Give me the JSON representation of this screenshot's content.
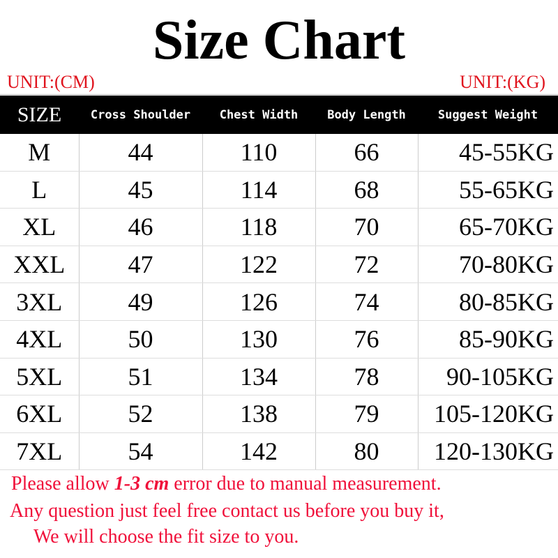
{
  "title": "Size Chart",
  "unit_left": "UNIT:(CM)",
  "unit_right": "UNIT:(KG)",
  "headers": [
    "SIZE",
    "Cross Shoulder",
    "Chest Width",
    "Body Length",
    "Suggest Weight"
  ],
  "rows": [
    [
      "M",
      "44",
      "110",
      "66",
      "45-55KG"
    ],
    [
      "L",
      "45",
      "114",
      "68",
      "55-65KG"
    ],
    [
      "XL",
      "46",
      "118",
      "70",
      "65-70KG"
    ],
    [
      "XXL",
      "47",
      "122",
      "72",
      "70-80KG"
    ],
    [
      "3XL",
      "49",
      "126",
      "74",
      "80-85KG"
    ],
    [
      "4XL",
      "50",
      "130",
      "76",
      "85-90KG"
    ],
    [
      "5XL",
      "51",
      "134",
      "78",
      "90-105KG"
    ],
    [
      "6XL",
      "52",
      "138",
      "79",
      "105-120KG"
    ],
    [
      "7XL",
      "54",
      "142",
      "80",
      "120-130KG"
    ]
  ],
  "notes": {
    "line1_pre": "Please allow ",
    "line1_bold": "1-3 cm",
    "line1_post": " error due to manual measurement.",
    "line2": "Any question just feel free contact us before you buy it,",
    "line3": "We will choose the fit size to you."
  },
  "colors": {
    "accent_red": "#f0103a",
    "header_bg": "#000000"
  }
}
